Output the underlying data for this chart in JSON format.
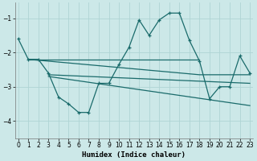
{
  "xlabel": "Humidex (Indice chaleur)",
  "bg_color": "#cce8e8",
  "grid_color": "#afd4d4",
  "line_color": "#1a6b6b",
  "xlim": [
    -0.3,
    23.3
  ],
  "ylim": [
    -4.5,
    -0.55
  ],
  "yticks": [
    -4,
    -3,
    -2,
    -1
  ],
  "xticks": [
    0,
    1,
    2,
    3,
    4,
    5,
    6,
    7,
    8,
    9,
    10,
    11,
    12,
    13,
    14,
    15,
    16,
    17,
    18,
    19,
    20,
    21,
    22,
    23
  ],
  "main_x": [
    0,
    1,
    2,
    3,
    4,
    5,
    6,
    7,
    8,
    9,
    10,
    11,
    12,
    13,
    14,
    15,
    16,
    17,
    18,
    19,
    20,
    21,
    22,
    23
  ],
  "main_y": [
    -1.6,
    -2.2,
    -2.2,
    -2.6,
    -3.3,
    -3.5,
    -3.75,
    -3.75,
    -2.9,
    -2.9,
    -2.35,
    -1.85,
    -1.05,
    -1.5,
    -1.05,
    -0.85,
    -0.85,
    -1.65,
    -2.25,
    -3.35,
    -3.0,
    -3.0,
    -2.1,
    -2.6
  ],
  "line1_x": [
    1,
    18
  ],
  "line1_y": [
    -2.2,
    -2.2
  ],
  "line2_x": [
    1,
    18,
    23
  ],
  "line2_y": [
    -2.2,
    -2.65,
    -2.65
  ],
  "line3_x": [
    3,
    23
  ],
  "line3_y": [
    -2.65,
    -2.9
  ],
  "line4_x": [
    3,
    23
  ],
  "line4_y": [
    -2.7,
    -3.55
  ]
}
